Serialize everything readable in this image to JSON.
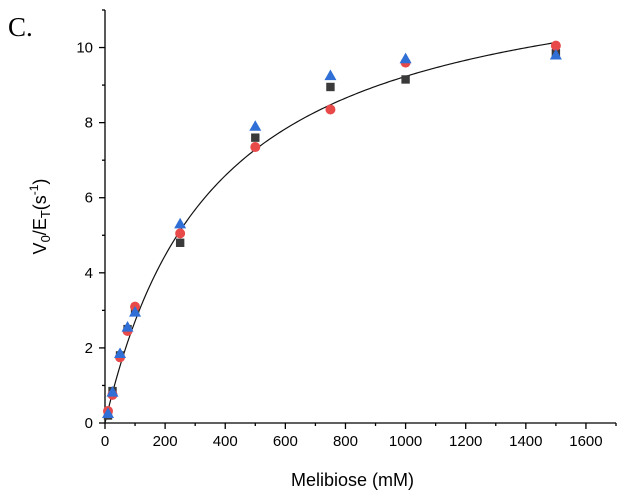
{
  "panel_label": "C.",
  "chart_data": {
    "type": "scatter",
    "xlabel": "Melibiose (mM)",
    "ylabel": "V0/ET(s-1)",
    "xlim": [
      0,
      1700
    ],
    "ylim": [
      0,
      11
    ],
    "x_ticks": [
      0,
      200,
      400,
      600,
      800,
      1000,
      1200,
      1400,
      1600
    ],
    "y_ticks": [
      0,
      2,
      4,
      6,
      8,
      10
    ],
    "grid": false,
    "legend": "none",
    "series": [
      {
        "marker": "square",
        "color": "#3a3a3a",
        "points": [
          [
            10,
            0.2
          ],
          [
            25,
            0.85
          ],
          [
            50,
            1.8
          ],
          [
            75,
            2.5
          ],
          [
            100,
            2.95
          ],
          [
            250,
            4.8
          ],
          [
            500,
            7.6
          ],
          [
            750,
            8.95
          ],
          [
            1000,
            9.15
          ],
          [
            1500,
            9.85
          ]
        ]
      },
      {
        "marker": "circle",
        "color": "#e84a4a",
        "points": [
          [
            10,
            0.32
          ],
          [
            25,
            0.75
          ],
          [
            50,
            1.75
          ],
          [
            75,
            2.45
          ],
          [
            100,
            3.1
          ],
          [
            250,
            5.05
          ],
          [
            500,
            7.35
          ],
          [
            750,
            8.35
          ],
          [
            1000,
            9.6
          ],
          [
            1500,
            10.05
          ]
        ]
      },
      {
        "marker": "triangle",
        "color": "#2f6fd6",
        "points": [
          [
            10,
            0.25
          ],
          [
            25,
            0.82
          ],
          [
            50,
            1.85
          ],
          [
            75,
            2.55
          ],
          [
            100,
            2.95
          ],
          [
            250,
            5.3
          ],
          [
            500,
            7.9
          ],
          [
            750,
            9.25
          ],
          [
            1000,
            9.7
          ],
          [
            1500,
            9.8
          ]
        ]
      }
    ],
    "fit": {
      "model": "michaelis-menten",
      "vmax": 12.6,
      "km": 365,
      "x_range": [
        0,
        1500
      ]
    }
  }
}
